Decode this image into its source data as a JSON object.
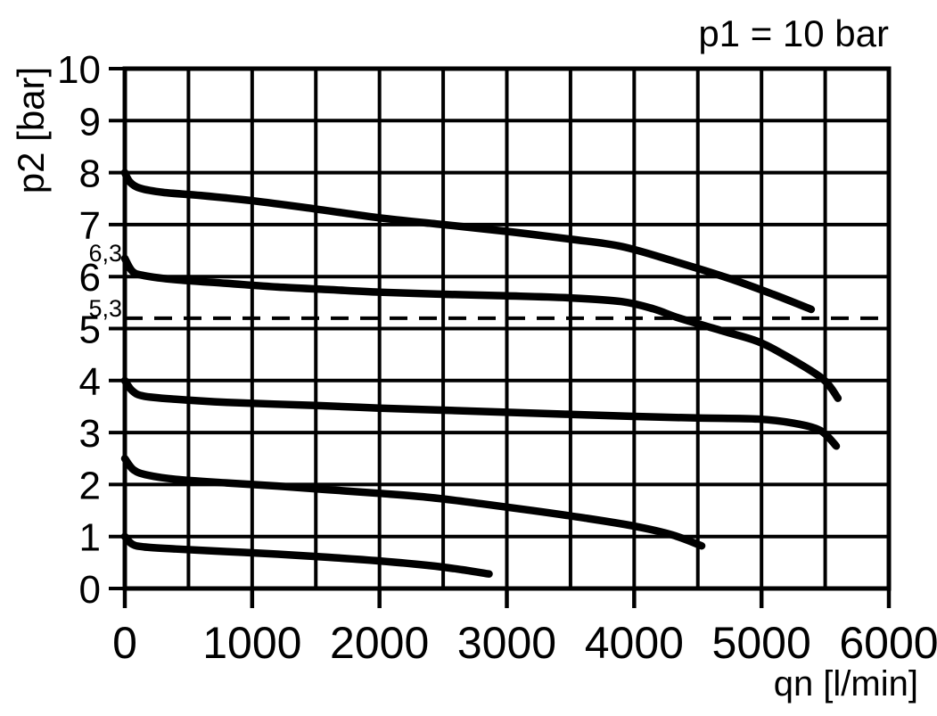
{
  "chart_data": {
    "type": "line",
    "title": "p1 = 10 bar",
    "xlabel": "qn [l/min]",
    "ylabel": "p2 [bar]",
    "xlim": [
      0,
      6000
    ],
    "ylim": [
      0,
      10
    ],
    "grid": true,
    "x_grid_step": 500,
    "y_grid_step": 1,
    "x_tick_labels": [
      "0",
      "1000",
      "2000",
      "3000",
      "4000",
      "5000",
      "6000"
    ],
    "x_tick_values": [
      0,
      1000,
      2000,
      3000,
      4000,
      5000,
      6000
    ],
    "y_tick_labels": [
      "0",
      "1",
      "2",
      "3",
      "4",
      "5",
      "6",
      "7",
      "8",
      "9",
      "10"
    ],
    "y_tick_values": [
      0,
      1,
      2,
      3,
      4,
      5,
      6,
      7,
      8,
      9,
      10
    ],
    "y_minor_labels": [
      {
        "label": "6,3",
        "p2_center": 6.47
      },
      {
        "label": "5,3",
        "p2_center": 5.4
      }
    ],
    "dashed_reference_line": {
      "label": "5,3",
      "p2": 5.2
    },
    "line_color": "#000000",
    "background_color": "#ffffff",
    "legend": "none",
    "series": [
      {
        "name": "curve_set_8_bar",
        "points": [
          [
            0,
            8.0
          ],
          [
            40,
            7.82
          ],
          [
            120,
            7.7
          ],
          [
            300,
            7.62
          ],
          [
            600,
            7.56
          ],
          [
            1000,
            7.46
          ],
          [
            1500,
            7.3
          ],
          [
            2000,
            7.13
          ],
          [
            2500,
            7.0
          ],
          [
            3000,
            6.87
          ],
          [
            3500,
            6.72
          ],
          [
            3900,
            6.58
          ],
          [
            4320,
            6.29
          ],
          [
            4740,
            5.97
          ],
          [
            5090,
            5.66
          ],
          [
            5390,
            5.37
          ]
        ]
      },
      {
        "name": "curve_set_6_3_bar",
        "points": [
          [
            0,
            6.35
          ],
          [
            60,
            6.1
          ],
          [
            150,
            6.02
          ],
          [
            400,
            5.94
          ],
          [
            800,
            5.87
          ],
          [
            1200,
            5.8
          ],
          [
            1600,
            5.75
          ],
          [
            2000,
            5.7
          ],
          [
            2500,
            5.66
          ],
          [
            3000,
            5.63
          ],
          [
            3500,
            5.59
          ],
          [
            3900,
            5.52
          ],
          [
            4150,
            5.38
          ],
          [
            4355,
            5.2
          ],
          [
            4700,
            4.95
          ],
          [
            4972,
            4.75
          ],
          [
            5202,
            4.46
          ],
          [
            5482,
            4.03
          ],
          [
            5600,
            3.66
          ]
        ]
      },
      {
        "name": "curve_set_4_bar",
        "points": [
          [
            0,
            4.0
          ],
          [
            60,
            3.8
          ],
          [
            150,
            3.7
          ],
          [
            400,
            3.64
          ],
          [
            800,
            3.58
          ],
          [
            1500,
            3.52
          ],
          [
            2000,
            3.47
          ],
          [
            2500,
            3.43
          ],
          [
            3000,
            3.39
          ],
          [
            3500,
            3.35
          ],
          [
            4000,
            3.31
          ],
          [
            4500,
            3.28
          ],
          [
            4972,
            3.26
          ],
          [
            5250,
            3.18
          ],
          [
            5461,
            3.04
          ],
          [
            5587,
            2.74
          ]
        ]
      },
      {
        "name": "curve_set_2_5_bar",
        "points": [
          [
            0,
            2.5
          ],
          [
            70,
            2.28
          ],
          [
            180,
            2.18
          ],
          [
            400,
            2.1
          ],
          [
            800,
            2.03
          ],
          [
            1200,
            1.97
          ],
          [
            1600,
            1.9
          ],
          [
            2000,
            1.83
          ],
          [
            2400,
            1.75
          ],
          [
            2800,
            1.63
          ],
          [
            3200,
            1.5
          ],
          [
            3600,
            1.36
          ],
          [
            4000,
            1.2
          ],
          [
            4300,
            1.03
          ],
          [
            4530,
            0.82
          ]
        ]
      },
      {
        "name": "curve_set_1_bar",
        "points": [
          [
            0,
            1.0
          ],
          [
            60,
            0.85
          ],
          [
            150,
            0.8
          ],
          [
            400,
            0.76
          ],
          [
            800,
            0.71
          ],
          [
            1200,
            0.66
          ],
          [
            1600,
            0.6
          ],
          [
            2000,
            0.53
          ],
          [
            2400,
            0.44
          ],
          [
            2650,
            0.36
          ],
          [
            2860,
            0.28
          ]
        ]
      }
    ]
  }
}
